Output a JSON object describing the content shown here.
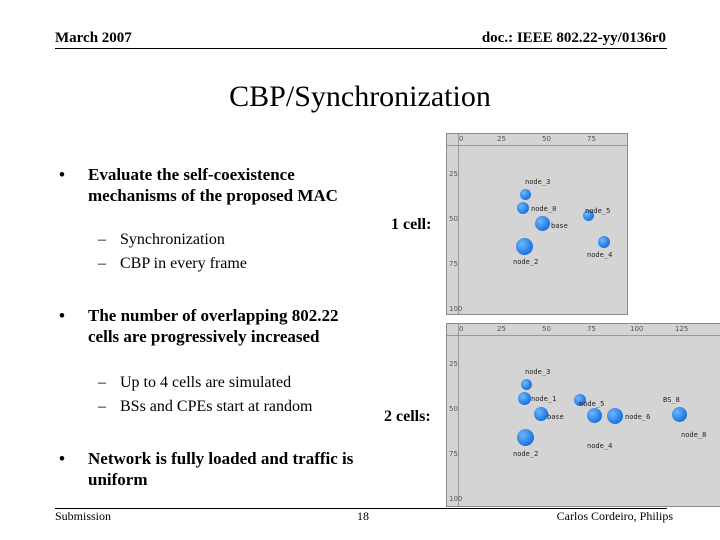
{
  "header": {
    "date": "March 2007",
    "doc": "doc.: IEEE 802.22-yy/0136r0"
  },
  "title": "CBP/Synchronization",
  "bullets": [
    {
      "text": "Evaluate the self-coexistence mechanisms of the proposed MAC",
      "subs": [
        "Synchronization",
        "CBP in every frame"
      ]
    },
    {
      "text": "The number of overlapping 802.22 cells are progressively increased",
      "subs": [
        "Up to 4 cells are simulated",
        "BSs and CPEs start at random"
      ]
    },
    {
      "text": "Network is fully loaded and traffic is uniform",
      "subs": []
    }
  ],
  "figures": [
    {
      "label": "1 cell:",
      "x_ticks": [
        "0",
        "25",
        "50",
        "75"
      ],
      "y_ticks": [
        "25",
        "50",
        "75",
        "100"
      ],
      "node_labels": [
        "node_3",
        "node_0",
        "node_5",
        "base",
        "node_4",
        "node_2"
      ]
    },
    {
      "label": "2 cells:",
      "x_ticks": [
        "0",
        "25",
        "50",
        "75",
        "100",
        "125"
      ],
      "y_ticks": [
        "25",
        "50",
        "75",
        "100"
      ],
      "node_labels": [
        "node_3",
        "node_1",
        "node_5",
        "base",
        "node_6",
        "BS_8",
        "node_4",
        "node_8",
        "node_2"
      ]
    }
  ],
  "footer": {
    "left": "Submission",
    "page": "18",
    "author": "Carlos Cordeiro, Philips"
  },
  "colors": {
    "node": "#1874e0",
    "panel": "#d4d4d4"
  }
}
